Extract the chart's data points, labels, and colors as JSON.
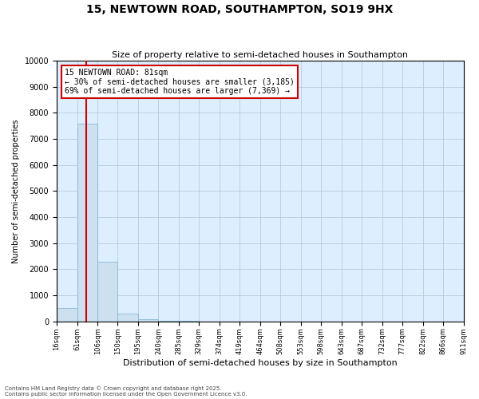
{
  "title": "15, NEWTOWN ROAD, SOUTHAMPTON, SO19 9HX",
  "subtitle": "Size of property relative to semi-detached houses in Southampton",
  "xlabel": "Distribution of semi-detached houses by size in Southampton",
  "ylabel": "Number of semi-detached properties",
  "footnote1": "Contains HM Land Registry data © Crown copyright and database right 2025.",
  "footnote2": "Contains public sector information licensed under the Open Government Licence v3.0.",
  "annotation_title": "15 NEWTOWN ROAD: 81sqm",
  "annotation_line1": "← 30% of semi-detached houses are smaller (3,185)",
  "annotation_line2": "69% of semi-detached houses are larger (7,369) →",
  "property_size": 81,
  "bar_edges": [
    16,
    61,
    106,
    150,
    195,
    240,
    285,
    329,
    374,
    419,
    464,
    508,
    553,
    598,
    643,
    687,
    732,
    777,
    822,
    866,
    911
  ],
  "bar_values": [
    500,
    7600,
    2300,
    300,
    80,
    30,
    15,
    8,
    5,
    3,
    2,
    2,
    1,
    1,
    1,
    1,
    1,
    1,
    1,
    1
  ],
  "bar_color": "#cce0f0",
  "bar_edgecolor": "#7ab0d0",
  "redline_color": "#cc0000",
  "annotation_box_edgecolor": "#cc0000",
  "annotation_box_facecolor": "#ffffff",
  "background_color": "#ffffff",
  "plot_bg_color": "#ddeeff",
  "grid_color": "#b0c4d8",
  "ylim": [
    0,
    10000
  ],
  "yticks": [
    0,
    1000,
    2000,
    3000,
    4000,
    5000,
    6000,
    7000,
    8000,
    9000,
    10000
  ]
}
